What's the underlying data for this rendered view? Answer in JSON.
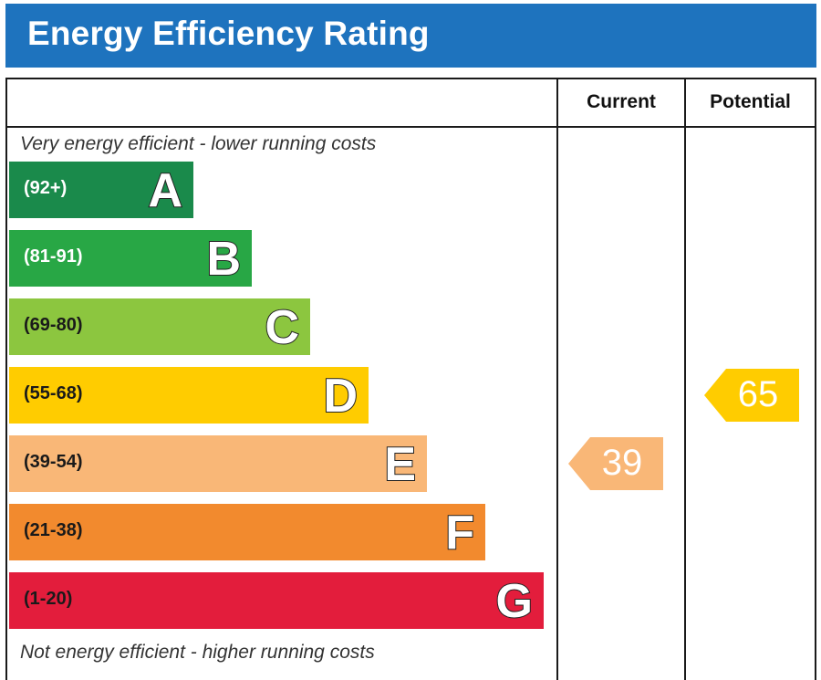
{
  "title": "Energy Efficiency Rating",
  "columns": {
    "current": "Current",
    "potential": "Potential"
  },
  "notes": {
    "top": "Very energy efficient - lower running costs",
    "bottom": "Not energy efficient - higher running costs"
  },
  "chart_data": {
    "type": "bar",
    "title": "Energy Efficiency Rating",
    "bands": [
      {
        "letter": "A",
        "range": "(92+)",
        "color": "#1a8a4b",
        "range_color": "#ffffff"
      },
      {
        "letter": "B",
        "range": "(81-91)",
        "color": "#28a745",
        "range_color": "#ffffff"
      },
      {
        "letter": "C",
        "range": "(69-80)",
        "color": "#8cc63f",
        "range_color": "#1a1a1a"
      },
      {
        "letter": "D",
        "range": "(55-68)",
        "color": "#ffcc00",
        "range_color": "#1a1a1a"
      },
      {
        "letter": "E",
        "range": "(39-54)",
        "color": "#f9b777",
        "range_color": "#1a1a1a"
      },
      {
        "letter": "F",
        "range": "(21-38)",
        "color": "#f28a2e",
        "range_color": "#1a1a1a"
      },
      {
        "letter": "G",
        "range": "(1-20)",
        "color": "#e31d3c",
        "range_color": "#1a1a1a"
      }
    ],
    "current": {
      "value": 39,
      "band": "E",
      "color": "#f9b777"
    },
    "potential": {
      "value": 65,
      "band": "D",
      "color": "#ffcc00"
    }
  }
}
